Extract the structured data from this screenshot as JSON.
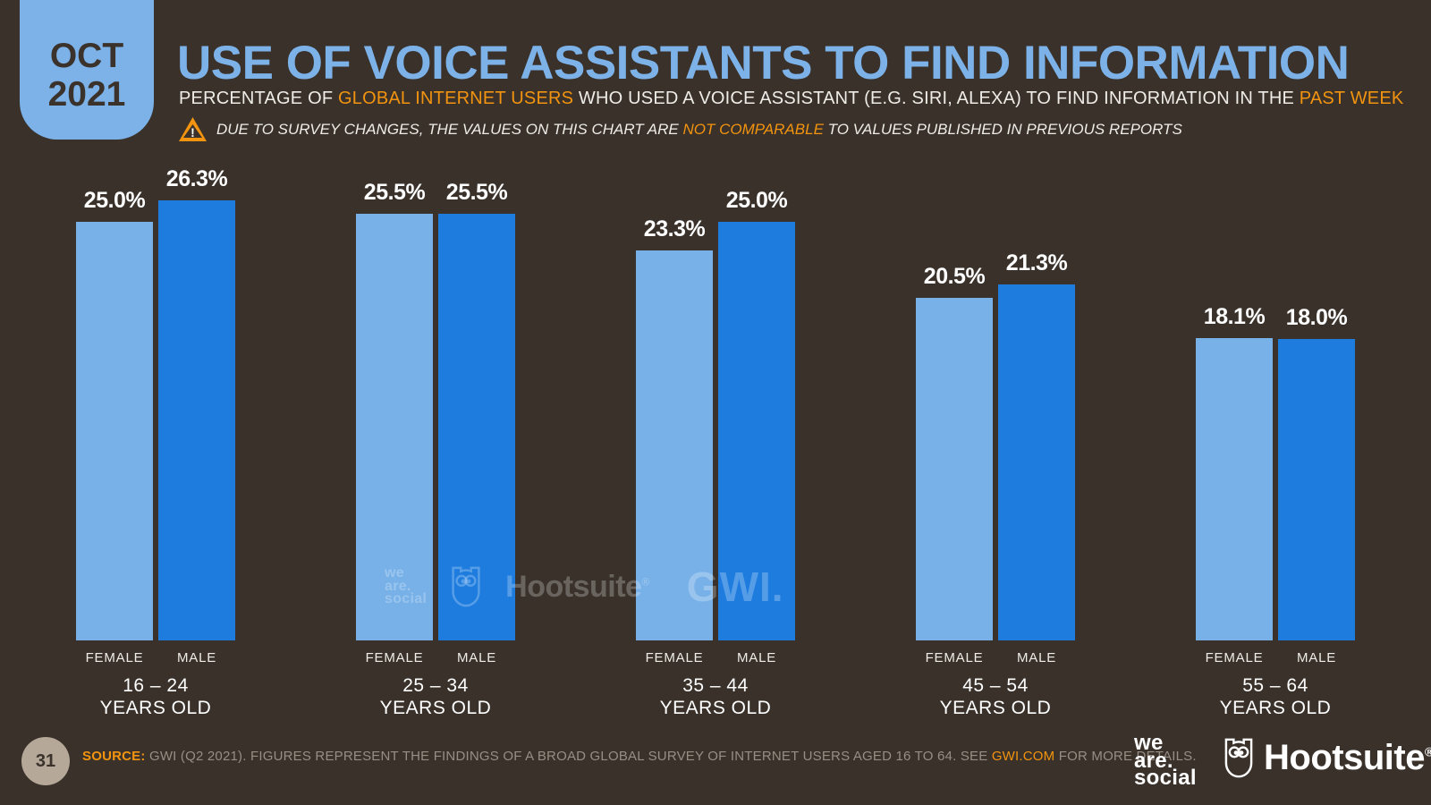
{
  "badge": {
    "month": "OCT",
    "year": "2021"
  },
  "header": {
    "title": "USE OF VOICE ASSISTANTS TO FIND INFORMATION",
    "subtitle": {
      "p1": "PERCENTAGE OF ",
      "h1": "GLOBAL INTERNET USERS",
      "p2": " WHO USED A VOICE ASSISTANT (E.G. SIRI, ALEXA) TO FIND INFORMATION IN THE ",
      "h2": "PAST WEEK"
    },
    "warning": {
      "icon_mark": "!",
      "p1": "DUE TO SURVEY CHANGES, THE VALUES ON THIS CHART ARE ",
      "h1": "NOT COMPARABLE",
      "p2": " TO VALUES PUBLISHED IN PREVIOUS REPORTS"
    }
  },
  "chart_data": {
    "type": "bar",
    "title": "USE OF VOICE ASSISTANTS TO FIND INFORMATION",
    "subtitle": "PERCENTAGE OF GLOBAL INTERNET USERS WHO USED A VOICE ASSISTANT (E.G. SIRI, ALEXA) TO FIND INFORMATION IN THE PAST WEEK",
    "unit": "%",
    "grid": false,
    "ylim": [
      0,
      30
    ],
    "legend_position": "labels-below-each-bar",
    "categories": [
      {
        "range": "16 – 24",
        "label": "YEARS OLD"
      },
      {
        "range": "25 – 34",
        "label": "YEARS OLD"
      },
      {
        "range": "35 – 44",
        "label": "YEARS OLD"
      },
      {
        "range": "45 – 54",
        "label": "YEARS OLD"
      },
      {
        "range": "55 – 64",
        "label": "YEARS OLD"
      }
    ],
    "series": [
      {
        "name": "FEMALE",
        "color": "#77B1E8",
        "values": [
          25.0,
          25.5,
          23.3,
          20.5,
          18.1
        ]
      },
      {
        "name": "MALE",
        "color": "#1E7CDF",
        "values": [
          26.3,
          25.5,
          25.0,
          21.3,
          18.0
        ]
      }
    ]
  },
  "watermark": {
    "brand1_lines": [
      "we",
      "are.",
      "social"
    ],
    "brand2": "Hootsuite",
    "reg": "®",
    "brand3": "GWI."
  },
  "footer": {
    "page_number": "31",
    "source_label": "SOURCE:",
    "source_text_1": " GWI (Q2 2021). FIGURES REPRESENT THE FINDINGS OF A BROAD GLOBAL SURVEY OF INTERNET USERS AGED 16 TO 64. SEE ",
    "source_link": "GWI.COM",
    "source_text_2": " FOR MORE DETAILS.",
    "we_are_social_lines": [
      "we",
      "are.",
      "social"
    ],
    "hootsuite_label": "Hootsuite",
    "reg": "®"
  },
  "colors": {
    "background": "#39312A",
    "badge_blue": "#7CB2E8",
    "title_blue": "#7DB2E9",
    "female_bar": "#77B1E8",
    "male_bar": "#1E7CDF",
    "accent_orange": "#F2940F",
    "source_grey": "#978F86",
    "page_circle_tan": "#B5A899"
  }
}
